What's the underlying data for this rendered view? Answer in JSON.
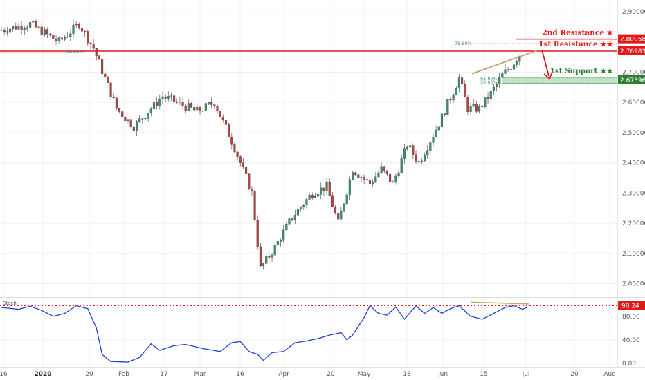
{
  "chart_data": {
    "type": "candlestick",
    "price_axis": {
      "range": [
        1.96,
        2.93
      ],
      "ticks": [
        {
          "v": 2.0,
          "label": "2.00000"
        },
        {
          "v": 2.1,
          "label": "2.10000"
        },
        {
          "v": 2.2,
          "label": "2.20000"
        },
        {
          "v": 2.3,
          "label": "2.30000"
        },
        {
          "v": 2.4,
          "label": "2.40000"
        },
        {
          "v": 2.5,
          "label": "2.50000"
        },
        {
          "v": 2.6,
          "label": "2.60000"
        },
        {
          "v": 2.7,
          "label": "2.70000"
        },
        {
          "v": 2.9,
          "label": "2.90000"
        }
      ]
    },
    "stoch_axis": {
      "range": [
        -5,
        108
      ],
      "ticks": [
        {
          "v": 0,
          "label": "0.00"
        },
        {
          "v": 40,
          "label": "40.00"
        },
        {
          "v": 80,
          "label": "80.00"
        }
      ]
    },
    "time_axis": [
      {
        "label": "16",
        "bold": false
      },
      {
        "label": "2020",
        "bold": true
      },
      {
        "label": "20",
        "bold": false
      },
      {
        "label": "Feb",
        "bold": false
      },
      {
        "label": "17",
        "bold": false
      },
      {
        "label": "Mar",
        "bold": false
      },
      {
        "label": "16",
        "bold": false
      },
      {
        "label": "Apr",
        "bold": false
      },
      {
        "label": "20",
        "bold": false
      },
      {
        "label": "May",
        "bold": false
      },
      {
        "label": "18",
        "bold": false
      },
      {
        "label": "Jun",
        "bold": false
      },
      {
        "label": "15",
        "bold": false
      },
      {
        "label": "Jul",
        "bold": false
      },
      {
        "label": "20",
        "bold": false
      },
      {
        "label": "Aug",
        "bold": false
      }
    ],
    "anchors": [
      [
        0,
        2.84
      ],
      [
        10,
        2.86
      ],
      [
        20,
        2.8
      ],
      [
        27,
        2.86
      ],
      [
        32,
        2.78
      ],
      [
        40,
        2.58
      ],
      [
        46,
        2.52
      ],
      [
        56,
        2.62
      ],
      [
        68,
        2.57
      ],
      [
        74,
        2.6
      ],
      [
        81,
        2.45
      ],
      [
        87,
        2.3
      ],
      [
        90,
        2.05
      ],
      [
        95,
        2.12
      ],
      [
        101,
        2.22
      ],
      [
        108,
        2.3
      ],
      [
        113,
        2.32
      ],
      [
        117,
        2.2
      ],
      [
        122,
        2.38
      ],
      [
        128,
        2.33
      ],
      [
        132,
        2.38
      ],
      [
        136,
        2.33
      ],
      [
        141,
        2.46
      ],
      [
        145,
        2.4
      ],
      [
        152,
        2.53
      ],
      [
        159,
        2.68
      ],
      [
        162,
        2.58
      ],
      [
        166,
        2.58
      ],
      [
        170,
        2.63
      ],
      [
        174,
        2.69
      ],
      [
        177,
        2.72
      ],
      [
        180,
        2.758
      ]
    ],
    "levels": [
      {
        "name": "2nd Resistance",
        "stars": "★",
        "value": 2.80958,
        "tag": "2.80958",
        "color": "#e0191b"
      },
      {
        "name": "1st Resistance",
        "stars": "★★",
        "value": 2.76983,
        "tag": "2.76983",
        "color": "#e0191b"
      },
      {
        "name": "1st Support",
        "stars": "★★",
        "value": 2.67396,
        "tag": "2.67396",
        "color": "#2e7d32"
      }
    ],
    "fib_labels": [
      {
        "label": "78.60%",
        "value": 2.795
      },
      {
        "label": "61.80%",
        "value": 2.678
      },
      {
        "label": "50.00%",
        "value": 2.667
      },
      {
        "label": "88.60%",
        "value": 2.768
      }
    ],
    "stochastic": {
      "label": "Stoch",
      "current": 98.24,
      "current_tag": "98.24",
      "anchors": [
        [
          0,
          95
        ],
        [
          6,
          92
        ],
        [
          10,
          97
        ],
        [
          14,
          90
        ],
        [
          18,
          80
        ],
        [
          22,
          85
        ],
        [
          26,
          98
        ],
        [
          30,
          93
        ],
        [
          33,
          60
        ],
        [
          35,
          15
        ],
        [
          38,
          3
        ],
        [
          44,
          2
        ],
        [
          48,
          10
        ],
        [
          52,
          33
        ],
        [
          55,
          22
        ],
        [
          60,
          30
        ],
        [
          64,
          32
        ],
        [
          70,
          25
        ],
        [
          76,
          20
        ],
        [
          80,
          35
        ],
        [
          83,
          37
        ],
        [
          86,
          20
        ],
        [
          89,
          15
        ],
        [
          91,
          5
        ],
        [
          94,
          18
        ],
        [
          98,
          20
        ],
        [
          102,
          35
        ],
        [
          106,
          38
        ],
        [
          110,
          42
        ],
        [
          114,
          48
        ],
        [
          118,
          52
        ],
        [
          120,
          40
        ],
        [
          122,
          48
        ],
        [
          126,
          78
        ],
        [
          128,
          98
        ],
        [
          131,
          85
        ],
        [
          134,
          82
        ],
        [
          137,
          96
        ],
        [
          140,
          75
        ],
        [
          144,
          98
        ],
        [
          147,
          85
        ],
        [
          150,
          95
        ],
        [
          153,
          85
        ],
        [
          156,
          93
        ],
        [
          159,
          98
        ],
        [
          163,
          80
        ],
        [
          167,
          75
        ],
        [
          171,
          85
        ],
        [
          175,
          95
        ],
        [
          178,
          98
        ],
        [
          181,
          92
        ],
        [
          183,
          96
        ]
      ]
    }
  }
}
